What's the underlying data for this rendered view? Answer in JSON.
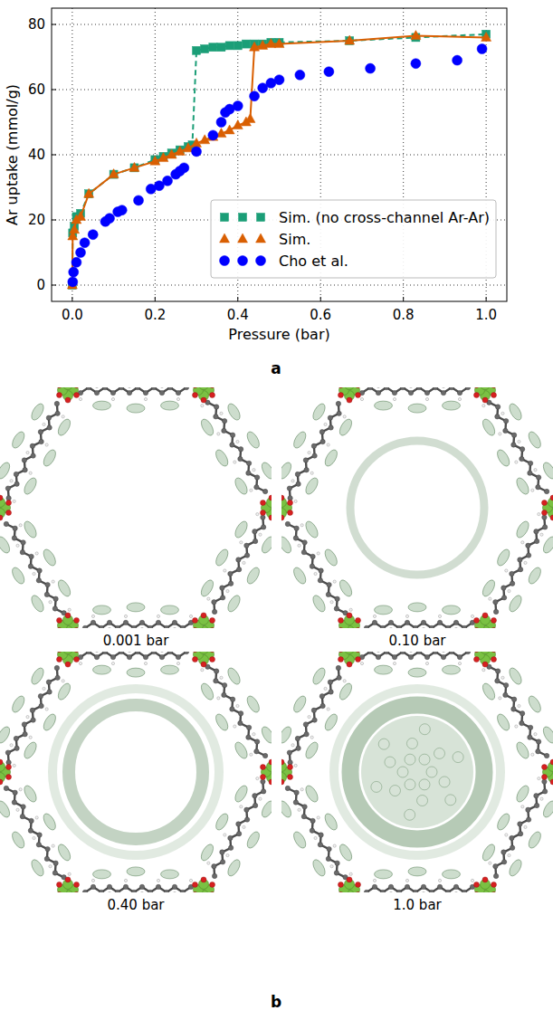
{
  "chart_data": {
    "type": "line",
    "x_label": "Pressure (bar)",
    "y_label": "Ar uptake (mmol/g)",
    "xlim": [
      -0.05,
      1.05
    ],
    "ylim": [
      -5,
      85
    ],
    "xticks": [
      {
        "value": 0,
        "label": "0.0"
      },
      0.2,
      0.4,
      0.6,
      0.8,
      {
        "value": 1,
        "label": "1.0"
      }
    ],
    "yticks": [
      0,
      20,
      40,
      60,
      80
    ],
    "grid": true,
    "legend": "lower right",
    "series": [
      {
        "name": "Sim. (no cross-channel Ar-Ar)",
        "type": "line",
        "color": "#1b9e77",
        "marker": "square",
        "line_style": "dashed",
        "x": [
          0,
          0.001,
          0.005,
          0.01,
          0.02,
          0.04,
          0.1,
          0.15,
          0.2,
          0.22,
          0.24,
          0.26,
          0.28,
          0.29,
          0.3,
          0.32,
          0.34,
          0.36,
          0.38,
          0.4,
          0.42,
          0.44,
          0.46,
          0.48,
          0.5,
          0.67,
          0.83,
          1.0
        ],
        "values": [
          0,
          16,
          18,
          21,
          22,
          28,
          34,
          36,
          38.5,
          39.5,
          40.5,
          41.5,
          42.5,
          43,
          72,
          72.5,
          73,
          73,
          73.5,
          73.5,
          74,
          74,
          74,
          74.5,
          74.5,
          75,
          76,
          77
        ]
      },
      {
        "name": "Sim.",
        "type": "line",
        "color": "#d95f02",
        "marker": "triangle",
        "line_style": "solid",
        "x": [
          0,
          0.001,
          0.005,
          0.01,
          0.02,
          0.04,
          0.1,
          0.15,
          0.2,
          0.22,
          0.24,
          0.26,
          0.28,
          0.3,
          0.32,
          0.34,
          0.36,
          0.38,
          0.4,
          0.42,
          0.43,
          0.44,
          0.46,
          0.48,
          0.5,
          0.67,
          0.83,
          1.0
        ],
        "values": [
          0,
          15,
          17,
          20,
          21,
          28,
          34,
          36,
          38,
          39,
          40,
          41,
          42,
          43.5,
          44.5,
          45.5,
          46.5,
          47.5,
          49,
          50,
          51,
          73,
          73.5,
          74,
          74,
          75,
          76.5,
          76
        ]
      },
      {
        "name": "Cho et al.",
        "type": "scatter",
        "color": "#0000ff",
        "marker": "circle",
        "x": [
          0.001,
          0.003,
          0.01,
          0.02,
          0.03,
          0.05,
          0.08,
          0.09,
          0.11,
          0.12,
          0.16,
          0.19,
          0.21,
          0.23,
          0.25,
          0.26,
          0.27,
          0.3,
          0.34,
          0.36,
          0.37,
          0.38,
          0.4,
          0.44,
          0.46,
          0.48,
          0.5,
          0.55,
          0.62,
          0.72,
          0.83,
          0.93,
          0.99
        ],
        "values": [
          1,
          4,
          7,
          10,
          13,
          15.5,
          19.5,
          20.5,
          22.5,
          23,
          26,
          29.5,
          30.5,
          32,
          34,
          35,
          36,
          41,
          46,
          50,
          53,
          54,
          55,
          58,
          60.5,
          62,
          63,
          64.5,
          65.5,
          66.5,
          68,
          69,
          72.5
        ]
      }
    ]
  },
  "figure": {
    "panel_a_label": "a",
    "panel_b_label": "b",
    "panel_b_captions": [
      "0.001 bar",
      "0.10 bar",
      "0.40 bar",
      "1.0 bar"
    ]
  }
}
